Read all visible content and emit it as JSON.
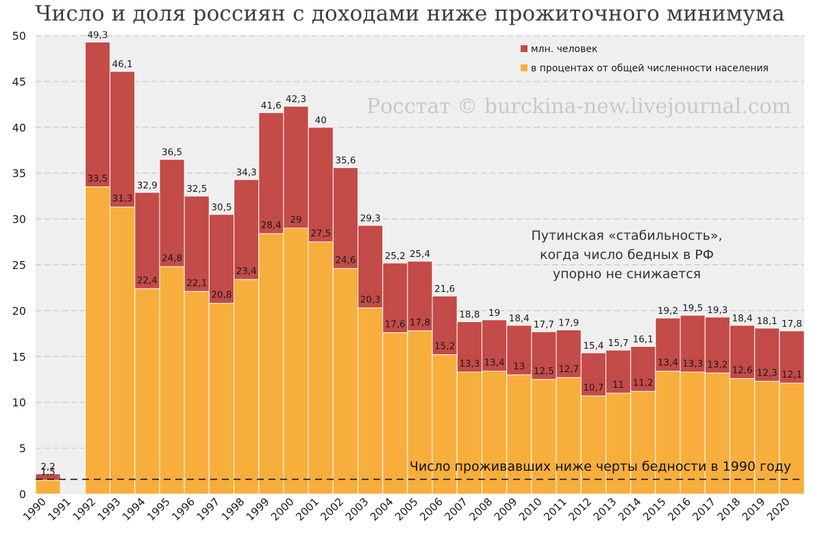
{
  "colors": {
    "plot_background": "#efefef",
    "million_people": "#c34b48",
    "percent": "#f7ae3c",
    "grid": "#bdbdbd",
    "watermark": "#c8c8c8",
    "text": "#1a1a1a"
  },
  "chart_data": {
    "type": "bar",
    "title": "Число и доля россиян с доходами ниже прожиточного минимума",
    "watermark": "Росстат © burckina-new.livejournal.com",
    "xlabel": "",
    "ylabel": "",
    "ylim": [
      0,
      50
    ],
    "yticks": [
      0,
      5,
      10,
      15,
      20,
      25,
      30,
      35,
      40,
      45,
      50
    ],
    "grid": true,
    "legend_position": "top-right",
    "categories": [
      "1990",
      "1991",
      "1992",
      "1993",
      "1994",
      "1995",
      "1996",
      "1997",
      "1998",
      "1999",
      "2000",
      "2001",
      "2002",
      "2003",
      "2004",
      "2005",
      "2006",
      "2007",
      "2008",
      "2009",
      "2010",
      "2011",
      "2012",
      "2013",
      "2014",
      "2015",
      "2016",
      "2017",
      "2018",
      "2019",
      "2020"
    ],
    "series": [
      {
        "name": "млн. человек",
        "color": "#c34b48",
        "values": [
          2.2,
          null,
          49.3,
          46.1,
          32.9,
          36.5,
          32.5,
          30.5,
          34.3,
          41.6,
          42.3,
          40,
          35.6,
          29.3,
          25.2,
          25.4,
          21.6,
          18.8,
          19,
          18.4,
          17.7,
          17.9,
          15.4,
          15.7,
          16.1,
          19.2,
          19.5,
          19.3,
          18.4,
          18.1,
          17.8
        ],
        "labels": [
          "2,2",
          "",
          "49,3",
          "46,1",
          "32,9",
          "36,5",
          "32,5",
          "30,5",
          "34,3",
          "41,6",
          "42,3",
          "40",
          "35,6",
          "29,3",
          "25,2",
          "25,4",
          "21,6",
          "18,8",
          "19",
          "18,4",
          "17,7",
          "17,9",
          "15,4",
          "15,7",
          "16,1",
          "19,2",
          "19,5",
          "19,3",
          "18,4",
          "18,1",
          "17,8"
        ]
      },
      {
        "name": "в процентах от общей численности населения",
        "color": "#f7ae3c",
        "values": [
          1.5,
          null,
          33.5,
          31.3,
          22.4,
          24.8,
          22.1,
          20.8,
          23.4,
          28.4,
          29,
          27.5,
          24.6,
          20.3,
          17.6,
          17.8,
          15.2,
          13.3,
          13.4,
          13,
          12.5,
          12.7,
          10.7,
          11,
          11.2,
          13.4,
          13.3,
          13.2,
          12.6,
          12.3,
          12.1
        ],
        "labels": [
          "1,5",
          "",
          "33,5",
          "31,3",
          "22,4",
          "24,8",
          "22,1",
          "20,8",
          "23,4",
          "28,4",
          "29",
          "27,5",
          "24,6",
          "20,3",
          "17,6",
          "17,8",
          "15,2",
          "13,3",
          "13,4",
          "13",
          "12,5",
          "12,7",
          "10,7",
          "11",
          "11,2",
          "13,4",
          "13,3",
          "13,2",
          "12,6",
          "12,3",
          "12,1"
        ]
      }
    ],
    "reference_line": {
      "value": 1.6,
      "label": "Число проживавших ниже черты бедности в 1990 году"
    },
    "annotation": {
      "lines": [
        "Путинская «стабильность»,",
        "когда число бедных в РФ",
        "упорно не снижается"
      ]
    }
  }
}
